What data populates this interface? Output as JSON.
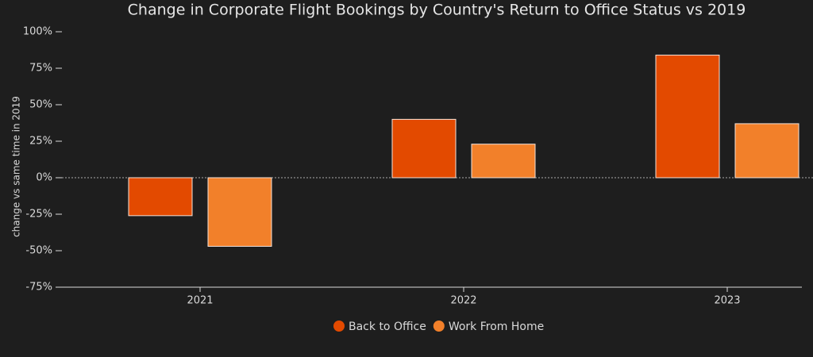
{
  "chart_data": {
    "type": "bar",
    "title": "Change in Corporate Flight Bookings by Country's Return to Office Status vs 2019",
    "y_label": "change vs same time in 2019",
    "categories": [
      "2021",
      "2022",
      "2023"
    ],
    "series": [
      {
        "name": "Back to Office",
        "color": "#e34a00",
        "values": [
          -26,
          40,
          84
        ]
      },
      {
        "name": "Work From Home",
        "color": "#f2802a",
        "values": [
          -47,
          23,
          37
        ]
      }
    ],
    "ylim": [
      -75,
      100
    ],
    "yticks": [
      {
        "value": -75,
        "label": "-75%"
      },
      {
        "value": -50,
        "label": "-50%"
      },
      {
        "value": -25,
        "label": "-25%"
      },
      {
        "value": 0,
        "label": "0%"
      },
      {
        "value": 25,
        "label": "25%"
      },
      {
        "value": 50,
        "label": "50%"
      },
      {
        "value": 75,
        "label": "75%"
      },
      {
        "value": 100,
        "label": "100%"
      }
    ],
    "legend": "bottom"
  }
}
